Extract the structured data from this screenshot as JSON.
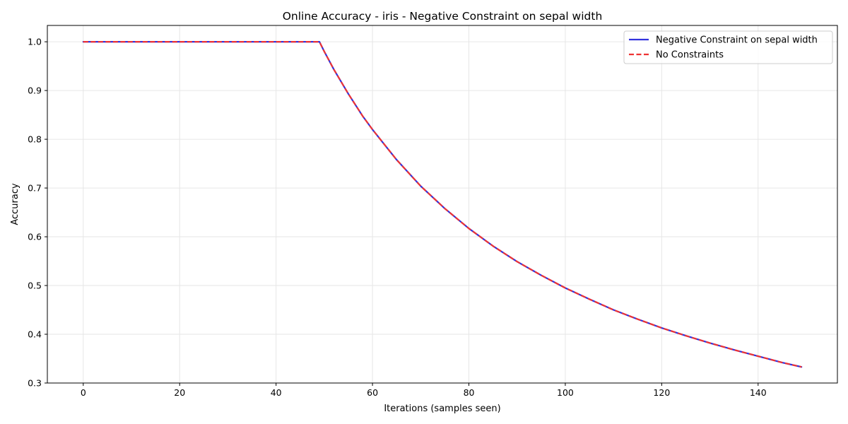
{
  "chart_data": {
    "type": "line",
    "title": "Online Accuracy - iris - Negative Constraint on sepal width",
    "xlabel": "Iterations (samples seen)",
    "ylabel": "Accuracy",
    "xlim": [
      -7.45,
      156.45
    ],
    "ylim": [
      0.3,
      1.0335
    ],
    "xticks": [
      0,
      20,
      40,
      60,
      80,
      100,
      120,
      140
    ],
    "yticks": [
      0.3,
      0.4,
      0.5,
      0.6,
      0.7,
      0.8,
      0.9,
      1.0
    ],
    "grid": true,
    "legend_position": "top-right",
    "series": [
      {
        "name": "Negative Constraint on sepal width",
        "color": "#3333dd",
        "style": "solid",
        "x": [
          0,
          49,
          50,
          52,
          55,
          58,
          60,
          65,
          70,
          75,
          80,
          85,
          90,
          95,
          100,
          105,
          110,
          115,
          120,
          125,
          130,
          135,
          140,
          145,
          149
        ],
        "y": [
          1.0,
          1.0,
          0.98,
          0.943,
          0.893,
          0.847,
          0.82,
          0.758,
          0.704,
          0.658,
          0.617,
          0.581,
          0.549,
          0.521,
          0.495,
          0.472,
          0.45,
          0.431,
          0.413,
          0.397,
          0.382,
          0.368,
          0.355,
          0.342,
          0.333
        ]
      },
      {
        "name": "No Constraints",
        "color": "#ee3333",
        "style": "dashed",
        "x": [
          0,
          49,
          50,
          52,
          55,
          58,
          60,
          65,
          70,
          75,
          80,
          85,
          90,
          95,
          100,
          105,
          110,
          115,
          120,
          125,
          130,
          135,
          140,
          145,
          149
        ],
        "y": [
          1.0,
          1.0,
          0.98,
          0.943,
          0.893,
          0.847,
          0.82,
          0.758,
          0.704,
          0.658,
          0.617,
          0.581,
          0.549,
          0.521,
          0.495,
          0.472,
          0.45,
          0.431,
          0.413,
          0.397,
          0.382,
          0.368,
          0.355,
          0.342,
          0.333
        ]
      }
    ]
  }
}
